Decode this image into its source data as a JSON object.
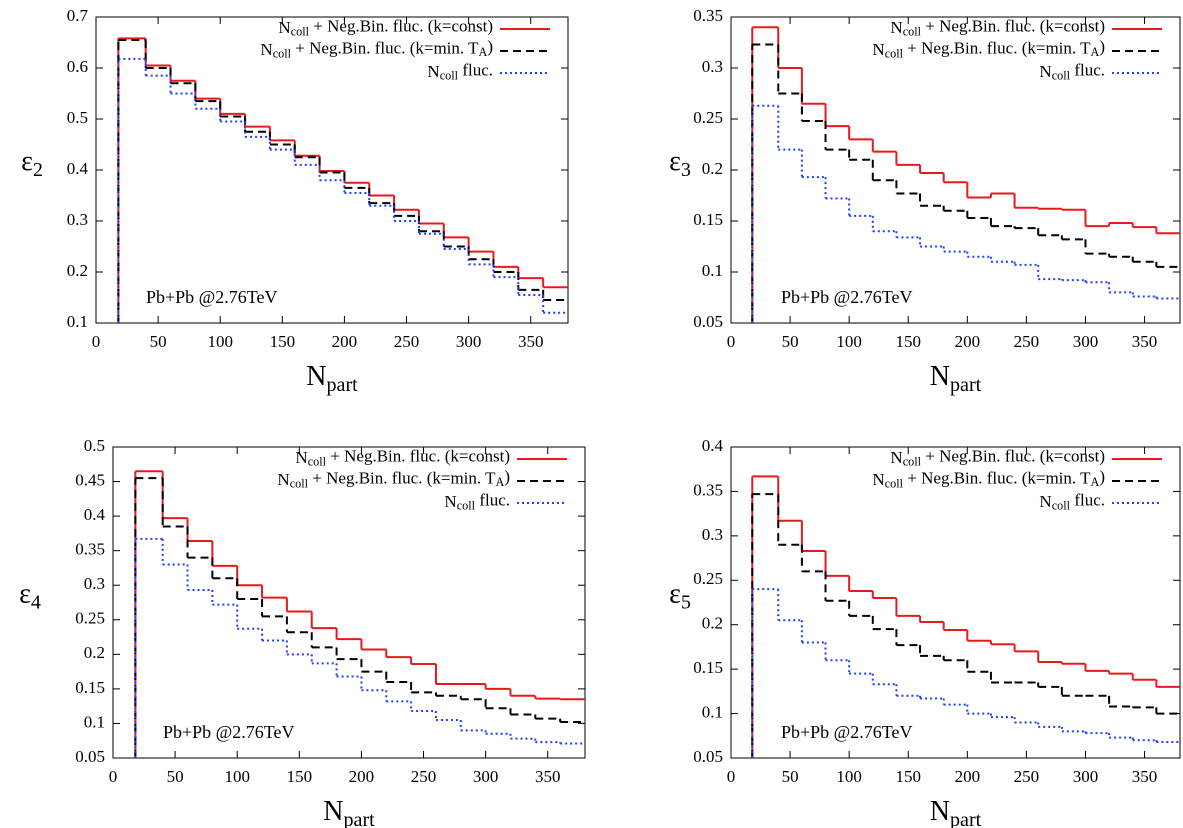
{
  "chart_data": [
    {
      "type": "histogram",
      "ylabel": [
        {
          "text": "ε"
        },
        {
          "text": "2",
          "sub": true
        }
      ],
      "xlabel": [
        {
          "text": "N"
        },
        {
          "text": "part",
          "sub": true
        }
      ],
      "annotation": "Pb+Pb @2.76TeV",
      "bins": [
        18,
        40,
        60,
        80,
        100,
        120,
        140,
        160,
        180,
        200,
        220,
        240,
        260,
        280,
        300,
        320,
        340,
        360,
        380
      ],
      "xlim": [
        0,
        380
      ],
      "xticks": [
        0,
        50,
        100,
        150,
        200,
        250,
        300,
        350
      ],
      "ylim": [
        0.1,
        0.7
      ],
      "yticks": [
        0.1,
        0.2,
        0.3,
        0.4,
        0.5,
        0.6,
        0.7
      ],
      "legend": "upper right",
      "series": [
        {
          "name": [
            {
              "text": "N"
            },
            {
              "text": "coll",
              "sub": true
            },
            {
              "text": " + Neg.Bin. fluc. (k=const)"
            }
          ],
          "color": "#e8191c",
          "dash": "solid",
          "values": [
            0.658,
            0.605,
            0.575,
            0.54,
            0.51,
            0.485,
            0.458,
            0.428,
            0.398,
            0.375,
            0.35,
            0.322,
            0.295,
            0.268,
            0.24,
            0.21,
            0.188,
            0.17
          ]
        },
        {
          "name": [
            {
              "text": "N"
            },
            {
              "text": "coll",
              "sub": true
            },
            {
              "text": " + Neg.Bin. fluc. (k=min. T"
            },
            {
              "text": "A",
              "sub": true
            },
            {
              "text": ")"
            }
          ],
          "color": "#000000",
          "dash": "dashed",
          "values": [
            0.655,
            0.6,
            0.57,
            0.535,
            0.505,
            0.475,
            0.45,
            0.425,
            0.395,
            0.365,
            0.335,
            0.31,
            0.28,
            0.25,
            0.225,
            0.2,
            0.165,
            0.145
          ]
        },
        {
          "name": [
            {
              "text": "N"
            },
            {
              "text": "coll",
              "sub": true
            },
            {
              "text": " fluc."
            }
          ],
          "color": "#1f3fff",
          "dash": "dotted",
          "values": [
            0.618,
            0.585,
            0.55,
            0.52,
            0.495,
            0.465,
            0.44,
            0.41,
            0.38,
            0.355,
            0.33,
            0.3,
            0.275,
            0.245,
            0.215,
            0.19,
            0.155,
            0.12
          ]
        }
      ]
    },
    {
      "type": "histogram",
      "ylabel": [
        {
          "text": "ε"
        },
        {
          "text": "3",
          "sub": true
        }
      ],
      "xlabel": [
        {
          "text": "N"
        },
        {
          "text": "part",
          "sub": true
        }
      ],
      "annotation": "Pb+Pb @2.76TeV",
      "bins": [
        18,
        40,
        60,
        80,
        100,
        120,
        140,
        160,
        180,
        200,
        220,
        240,
        260,
        280,
        300,
        320,
        340,
        360,
        380
      ],
      "xlim": [
        0,
        380
      ],
      "xticks": [
        0,
        50,
        100,
        150,
        200,
        250,
        300,
        350
      ],
      "ylim": [
        0.05,
        0.35
      ],
      "yticks": [
        0.05,
        0.1,
        0.15,
        0.2,
        0.25,
        0.3,
        0.35
      ],
      "legend": "upper right",
      "series": [
        {
          "name": [
            {
              "text": "N"
            },
            {
              "text": "coll",
              "sub": true
            },
            {
              "text": " + Neg.Bin. fluc. (k=const)"
            }
          ],
          "color": "#e8191c",
          "dash": "solid",
          "values": [
            0.34,
            0.3,
            0.265,
            0.243,
            0.23,
            0.218,
            0.205,
            0.197,
            0.188,
            0.173,
            0.177,
            0.163,
            0.162,
            0.161,
            0.145,
            0.148,
            0.144,
            0.138
          ]
        },
        {
          "name": [
            {
              "text": "N"
            },
            {
              "text": "coll",
              "sub": true
            },
            {
              "text": " + Neg.Bin. fluc. (k=min. T"
            },
            {
              "text": "A",
              "sub": true
            },
            {
              "text": ")"
            }
          ],
          "color": "#000000",
          "dash": "dashed",
          "values": [
            0.323,
            0.275,
            0.248,
            0.22,
            0.21,
            0.19,
            0.177,
            0.165,
            0.16,
            0.153,
            0.145,
            0.143,
            0.136,
            0.132,
            0.118,
            0.115,
            0.11,
            0.105
          ]
        },
        {
          "name": [
            {
              "text": "N"
            },
            {
              "text": "coll",
              "sub": true
            },
            {
              "text": " fluc."
            }
          ],
          "color": "#1f3fff",
          "dash": "dotted",
          "values": [
            0.263,
            0.22,
            0.193,
            0.172,
            0.155,
            0.14,
            0.134,
            0.125,
            0.12,
            0.115,
            0.11,
            0.107,
            0.093,
            0.092,
            0.09,
            0.08,
            0.076,
            0.074
          ]
        }
      ]
    },
    {
      "type": "histogram",
      "ylabel": [
        {
          "text": "ε"
        },
        {
          "text": "4",
          "sub": true
        }
      ],
      "xlabel": [
        {
          "text": "N"
        },
        {
          "text": "part",
          "sub": true
        }
      ],
      "annotation": "Pb+Pb @2.76TeV",
      "bins": [
        18,
        40,
        60,
        80,
        100,
        120,
        140,
        160,
        180,
        200,
        220,
        240,
        260,
        280,
        300,
        320,
        340,
        360,
        380
      ],
      "xlim": [
        0,
        380
      ],
      "xticks": [
        0,
        50,
        100,
        150,
        200,
        250,
        300,
        350
      ],
      "ylim": [
        0.05,
        0.5
      ],
      "yticks": [
        0.05,
        0.1,
        0.15,
        0.2,
        0.25,
        0.3,
        0.35,
        0.4,
        0.45,
        0.5
      ],
      "legend": "upper right",
      "series": [
        {
          "name": [
            {
              "text": "N"
            },
            {
              "text": "coll",
              "sub": true
            },
            {
              "text": " + Neg.Bin. fluc. (k=const)"
            }
          ],
          "color": "#e8191c",
          "dash": "solid",
          "values": [
            0.465,
            0.397,
            0.364,
            0.328,
            0.3,
            0.282,
            0.262,
            0.238,
            0.222,
            0.207,
            0.196,
            0.186,
            0.157,
            0.157,
            0.15,
            0.14,
            0.136,
            0.135
          ]
        },
        {
          "name": [
            {
              "text": "N"
            },
            {
              "text": "coll",
              "sub": true
            },
            {
              "text": " + Neg.Bin. fluc. (k=min. T"
            },
            {
              "text": "A",
              "sub": true
            },
            {
              "text": ")"
            }
          ],
          "color": "#000000",
          "dash": "dashed",
          "values": [
            0.455,
            0.385,
            0.34,
            0.31,
            0.28,
            0.255,
            0.232,
            0.21,
            0.193,
            0.175,
            0.16,
            0.145,
            0.14,
            0.135,
            0.122,
            0.113,
            0.107,
            0.102
          ]
        },
        {
          "name": [
            {
              "text": "N"
            },
            {
              "text": "coll",
              "sub": true
            },
            {
              "text": " fluc."
            }
          ],
          "color": "#1f3fff",
          "dash": "dotted",
          "values": [
            0.367,
            0.33,
            0.293,
            0.272,
            0.237,
            0.22,
            0.2,
            0.187,
            0.168,
            0.148,
            0.132,
            0.118,
            0.105,
            0.09,
            0.085,
            0.078,
            0.073,
            0.071
          ]
        }
      ]
    },
    {
      "type": "histogram",
      "ylabel": [
        {
          "text": "ε"
        },
        {
          "text": "5",
          "sub": true
        }
      ],
      "xlabel": [
        {
          "text": "N"
        },
        {
          "text": "part",
          "sub": true
        }
      ],
      "annotation": "Pb+Pb @2.76TeV",
      "bins": [
        18,
        40,
        60,
        80,
        100,
        120,
        140,
        160,
        180,
        200,
        220,
        240,
        260,
        280,
        300,
        320,
        340,
        360,
        380
      ],
      "xlim": [
        0,
        380
      ],
      "xticks": [
        0,
        50,
        100,
        150,
        200,
        250,
        300,
        350
      ],
      "ylim": [
        0.05,
        0.4
      ],
      "yticks": [
        0.05,
        0.1,
        0.15,
        0.2,
        0.25,
        0.3,
        0.35,
        0.4
      ],
      "legend": "upper right",
      "series": [
        {
          "name": [
            {
              "text": "N"
            },
            {
              "text": "coll",
              "sub": true
            },
            {
              "text": " + Neg.Bin. fluc. (k=const)"
            }
          ],
          "color": "#e8191c",
          "dash": "solid",
          "values": [
            0.367,
            0.317,
            0.283,
            0.255,
            0.238,
            0.23,
            0.21,
            0.203,
            0.194,
            0.182,
            0.178,
            0.17,
            0.158,
            0.156,
            0.148,
            0.145,
            0.138,
            0.13
          ]
        },
        {
          "name": [
            {
              "text": "N"
            },
            {
              "text": "coll",
              "sub": true
            },
            {
              "text": " + Neg.Bin. fluc. (k=min. T"
            },
            {
              "text": "A",
              "sub": true
            },
            {
              "text": ")"
            }
          ],
          "color": "#000000",
          "dash": "dashed",
          "values": [
            0.347,
            0.29,
            0.26,
            0.227,
            0.21,
            0.195,
            0.177,
            0.165,
            0.16,
            0.147,
            0.135,
            0.135,
            0.13,
            0.12,
            0.12,
            0.108,
            0.107,
            0.1
          ]
        },
        {
          "name": [
            {
              "text": "N"
            },
            {
              "text": "coll",
              "sub": true
            },
            {
              "text": " fluc."
            }
          ],
          "color": "#1f3fff",
          "dash": "dotted",
          "values": [
            0.24,
            0.205,
            0.18,
            0.16,
            0.145,
            0.133,
            0.12,
            0.117,
            0.11,
            0.1,
            0.096,
            0.09,
            0.085,
            0.08,
            0.078,
            0.073,
            0.07,
            0.068
          ]
        }
      ]
    }
  ]
}
